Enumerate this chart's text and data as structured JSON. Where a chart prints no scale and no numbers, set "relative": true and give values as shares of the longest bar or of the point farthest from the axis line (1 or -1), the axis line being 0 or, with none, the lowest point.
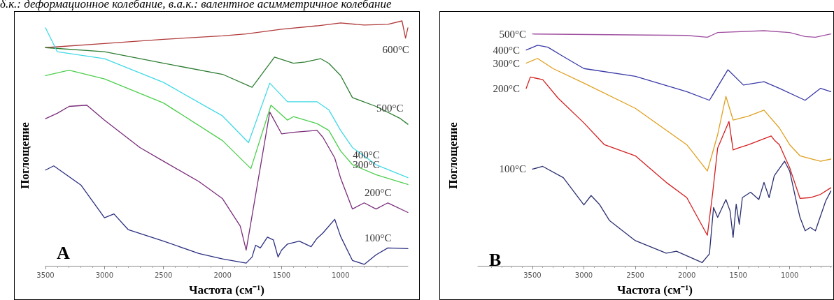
{
  "chart_data": [
    {
      "type": "line",
      "title": "δ.к.: деформационное колебание, в.а.к.: валентное асимметричное колебание",
      "xlabel": "Частота (см⁻¹)",
      "ylabel": "Поглощение",
      "relative": true,
      "xlim": [
        3500,
        430
      ],
      "xticks": [
        3500,
        3000,
        2500,
        2000,
        1500,
        1000
      ],
      "grid": false,
      "legend": false,
      "marker": "none",
      "line_style": "solid",
      "annotations": [
        "A"
      ],
      "series": [
        {
          "name": "600°C",
          "color": "#b03a3a",
          "x": [
            3500,
            3000,
            2500,
            2000,
            1800,
            1500,
            1200,
            1000,
            800,
            600,
            480,
            450,
            430
          ],
          "values": [
            0.891,
            0.908,
            0.925,
            0.939,
            0.947,
            0.966,
            0.98,
            0.992,
            0.983,
            0.986,
            1.0,
            0.93,
            0.972
          ]
        },
        {
          "name": "500°C",
          "color": "#2e7d32",
          "x": [
            3500,
            3000,
            2500,
            2000,
            1750,
            1560,
            1400,
            1300,
            1170,
            1100,
            1000,
            900,
            700,
            500,
            430
          ],
          "values": [
            0.891,
            0.874,
            0.827,
            0.782,
            0.729,
            0.852,
            0.827,
            0.832,
            0.846,
            0.827,
            0.777,
            0.687,
            0.651,
            0.603,
            0.578
          ]
        },
        {
          "name": "400°C",
          "color": "#40d9e6",
          "x": [
            3500,
            3400,
            3000,
            2500,
            2000,
            1780,
            1600,
            1450,
            1200,
            1100,
            1000,
            900,
            700,
            430
          ],
          "values": [
            0.972,
            0.874,
            0.846,
            0.749,
            0.612,
            0.503,
            0.746,
            0.67,
            0.67,
            0.637,
            0.553,
            0.483,
            0.413,
            0.36
          ]
        },
        {
          "name": "300°C",
          "color": "#4ccf4c",
          "x": [
            3500,
            3300,
            3000,
            2500,
            2000,
            1760,
            1590,
            1450,
            1400,
            1200,
            1100,
            1000,
            900,
            700,
            430
          ],
          "values": [
            0.777,
            0.799,
            0.763,
            0.665,
            0.511,
            0.397,
            0.656,
            0.595,
            0.609,
            0.581,
            0.553,
            0.469,
            0.413,
            0.372,
            0.332
          ]
        },
        {
          "name": "200°C",
          "color": "#7a2d7a",
          "x": [
            3500,
            3400,
            3300,
            3150,
            3000,
            2700,
            2500,
            2200,
            2000,
            1850,
            1800,
            1600,
            1500,
            1400,
            1200,
            1150,
            1050,
            1000,
            900,
            800,
            700,
            600,
            430
          ],
          "values": [
            0.601,
            0.623,
            0.651,
            0.656,
            0.595,
            0.483,
            0.427,
            0.344,
            0.274,
            0.162,
            0.064,
            0.628,
            0.539,
            0.545,
            0.553,
            0.525,
            0.441,
            0.358,
            0.232,
            0.257,
            0.232,
            0.257,
            0.218
          ]
        },
        {
          "name": "100°C",
          "color": "#2b2f80",
          "x": [
            3500,
            3430,
            3200,
            3000,
            2920,
            2800,
            2500,
            2200,
            2000,
            1800,
            1750,
            1720,
            1680,
            1620,
            1570,
            1530,
            1500,
            1450,
            1350,
            1250,
            1200,
            1150,
            1050,
            1000,
            900,
            800,
            700,
            600,
            430
          ],
          "values": [
            0.391,
            0.408,
            0.33,
            0.196,
            0.212,
            0.148,
            0.101,
            0.05,
            0.028,
            0.011,
            0.036,
            0.084,
            0.073,
            0.117,
            0.106,
            0.036,
            0.064,
            0.089,
            0.101,
            0.078,
            0.112,
            0.134,
            0.19,
            0.12,
            0.022,
            0.006,
            0.045,
            0.073,
            0.07
          ]
        }
      ]
    },
    {
      "type": "line",
      "xlabel": "Частота (см⁻¹)",
      "ylabel": "Поглощение",
      "relative": true,
      "xlim": [
        4030,
        590
      ],
      "xticks": [
        3500,
        3000,
        2500,
        2000,
        1500,
        1000
      ],
      "grid": false,
      "legend": false,
      "marker": "none",
      "line_style": "solid",
      "annotations": [
        "B"
      ],
      "series": [
        {
          "name": "500°C",
          "color": "#a050a0",
          "x": [
            3500,
            2000,
            1800,
            1700,
            1250,
            1000,
            850,
            750,
            600
          ],
          "values": [
            0.986,
            0.98,
            0.972,
            0.992,
            1.0,
            0.992,
            0.975,
            0.972,
            0.986
          ]
        },
        {
          "name": "400°C",
          "color": "#3a3aa8",
          "x": [
            3560,
            3450,
            3350,
            3200,
            3000,
            2500,
            2000,
            1780,
            1600,
            1450,
            1250,
            1100,
            850,
            700,
            600
          ],
          "values": [
            0.918,
            0.938,
            0.93,
            0.89,
            0.839,
            0.806,
            0.741,
            0.704,
            0.834,
            0.769,
            0.783,
            0.755,
            0.704,
            0.755,
            0.741
          ]
        },
        {
          "name": "300°C",
          "color": "#e0a020",
          "x": [
            3560,
            3450,
            3300,
            3000,
            2500,
            2000,
            1800,
            1700,
            1620,
            1550,
            1400,
            1250,
            1100,
            1000,
            900,
            800,
            700,
            600
          ],
          "values": [
            0.862,
            0.882,
            0.839,
            0.777,
            0.67,
            0.515,
            0.403,
            0.558,
            0.721,
            0.62,
            0.637,
            0.662,
            0.586,
            0.515,
            0.468,
            0.456,
            0.445,
            0.454
          ]
        },
        {
          "name": "200°C",
          "color": "#d42020",
          "x": [
            3560,
            3520,
            3400,
            3250,
            3000,
            2800,
            2500,
            2200,
            2000,
            1800,
            1750,
            1700,
            1590,
            1550,
            1500,
            1400,
            1180,
            1150,
            1100,
            1000,
            900,
            800,
            700,
            600
          ],
          "values": [
            0.755,
            0.803,
            0.792,
            0.713,
            0.608,
            0.515,
            0.468,
            0.355,
            0.29,
            0.13,
            0.304,
            0.501,
            0.614,
            0.493,
            0.501,
            0.515,
            0.552,
            0.535,
            0.515,
            0.417,
            0.287,
            0.29,
            0.304,
            0.332
          ]
        },
        {
          "name": "100°C",
          "color": "#2a2f70",
          "x": [
            3500,
            3400,
            3200,
            3000,
            2930,
            2850,
            2750,
            2500,
            2200,
            2100,
            1850,
            1780,
            1740,
            1700,
            1620,
            1580,
            1550,
            1520,
            1490,
            1460,
            1380,
            1300,
            1250,
            1200,
            1150,
            1050,
            1000,
            930,
            900,
            850,
            800,
            750,
            650,
            600
          ],
          "values": [
            0.411,
            0.423,
            0.375,
            0.259,
            0.299,
            0.262,
            0.192,
            0.107,
            0.054,
            0.062,
            0.014,
            0.051,
            0.248,
            0.206,
            0.282,
            0.234,
            0.121,
            0.262,
            0.177,
            0.29,
            0.313,
            0.282,
            0.355,
            0.29,
            0.383,
            0.445,
            0.403,
            0.262,
            0.206,
            0.149,
            0.163,
            0.149,
            0.276,
            0.318
          ]
        }
      ]
    }
  ]
}
